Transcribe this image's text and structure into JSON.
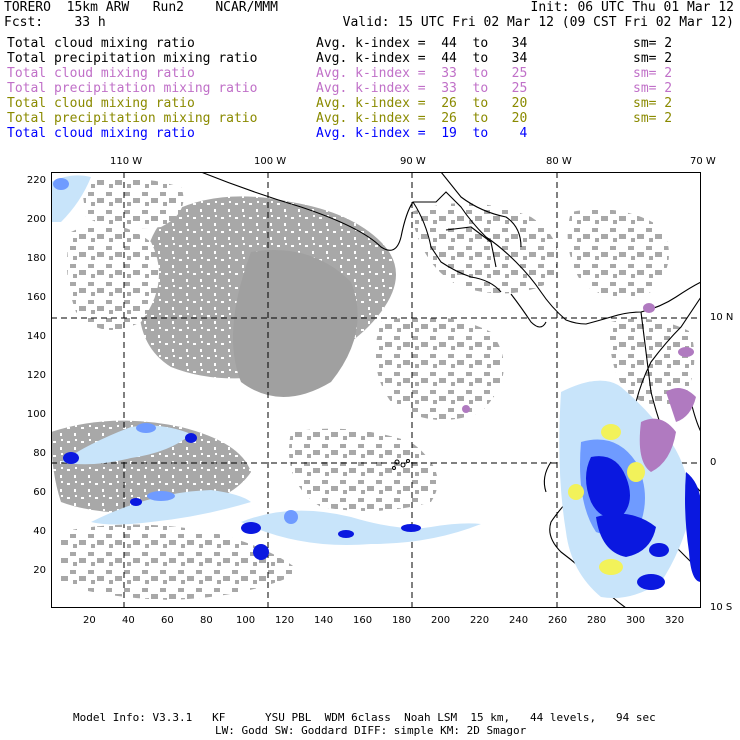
{
  "header": {
    "line1_left": "TORERO  15km ARW   Run2    NCAR/MMM",
    "line1_right": "Init: 06 UTC Thu 01 Mar 12",
    "line2_left": "Fcst:    33 h",
    "line2_right": "Valid: 15 UTC Fri 02 Mar 12 (09 CST Fri 02 Mar 12)"
  },
  "legend_rows": [
    {
      "variable": "Total cloud mixing ratio",
      "avg": "Avg. k-index =  44  to   34",
      "sm": "sm= 2",
      "color": "#000000"
    },
    {
      "variable": "Total precipitation mixing ratio",
      "avg": "Avg. k-index =  44  to   34",
      "sm": "sm= 2",
      "color": "#000000"
    },
    {
      "variable": "Total cloud mixing ratio",
      "avg": "Avg. k-index =  33  to   25",
      "sm": "sm= 2",
      "color": "#c070c8"
    },
    {
      "variable": "Total precipitation mixing ratio",
      "avg": "Avg. k-index =  33  to   25",
      "sm": "sm= 2",
      "color": "#c070c8"
    },
    {
      "variable": "Total cloud mixing ratio",
      "avg": "Avg. k-index =  26  to   20",
      "sm": "sm= 2",
      "color": "#8a8a00"
    },
    {
      "variable": "Total precipitation mixing ratio",
      "avg": "Avg. k-index =  26  to   20",
      "sm": "sm= 2",
      "color": "#8a8a00"
    },
    {
      "variable": "Total cloud mixing ratio",
      "avg": "Avg. k-index =  19  to    4",
      "sm": "",
      "color": "#0000ff"
    }
  ],
  "axes": {
    "lon_labels": [
      "110 W",
      "100 W",
      "90 W",
      "80 W",
      "70 W"
    ],
    "lat_labels": [
      "10 N",
      "0",
      "10 S"
    ],
    "y_ticks": [
      "220",
      "200",
      "180",
      "160",
      "140",
      "120",
      "100",
      "80",
      "60",
      "40",
      "20"
    ],
    "x_ticks": [
      "20",
      "40",
      "60",
      "80",
      "100",
      "120",
      "140",
      "160",
      "180",
      "200",
      "220",
      "240",
      "260",
      "280",
      "300",
      "320"
    ]
  },
  "colors": {
    "cloud_gray": "#a8a8a8",
    "light_blue": "#c8e4fa",
    "mid_blue": "#6f9bff",
    "dark_blue": "#0a18e0",
    "purple": "#b07ac0",
    "yellow": "#f2f25a"
  },
  "footer": {
    "line1": "Model Info: V3.3.1   KF      YSU PBL  WDM 6class  Noah LSM  15 km,   44 levels,   94 sec",
    "line2": "LW: Godd SW: Goddard DIFF: simple KM: 2D Smagor"
  }
}
